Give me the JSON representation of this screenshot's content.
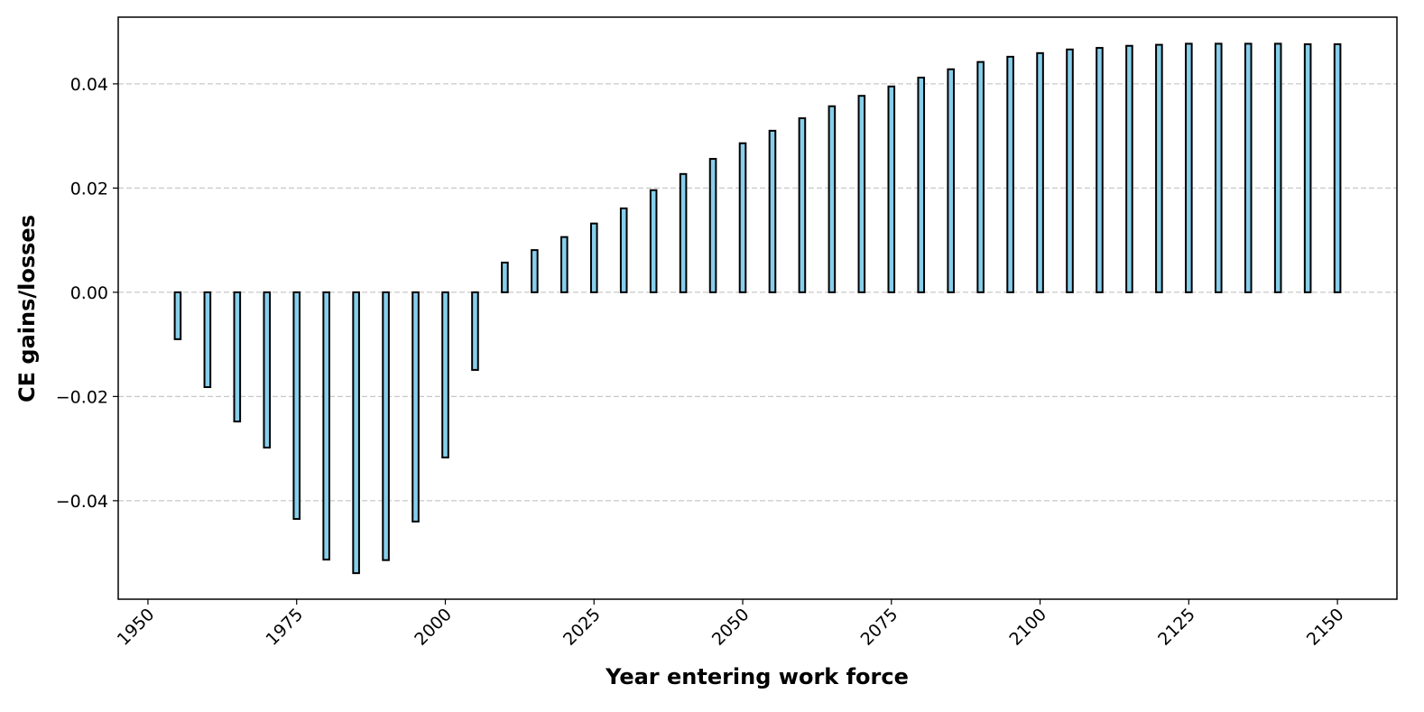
{
  "chart_data": {
    "type": "bar",
    "x_label": "Year entering work force",
    "y_label": "CE gains/losses",
    "x": [
      1955,
      1960,
      1965,
      1970,
      1975,
      1980,
      1985,
      1990,
      1995,
      2000,
      2005,
      2010,
      2015,
      2020,
      2025,
      2030,
      2035,
      2040,
      2045,
      2050,
      2055,
      2060,
      2065,
      2070,
      2075,
      2080,
      2085,
      2090,
      2095,
      2100,
      2105,
      2110,
      2115,
      2120,
      2125,
      2130,
      2135,
      2140,
      2145,
      2150
    ],
    "values": [
      -0.009,
      -0.0182,
      -0.0248,
      -0.0298,
      -0.0435,
      -0.0513,
      -0.0539,
      -0.0514,
      -0.044,
      -0.0317,
      -0.0149,
      0.0057,
      0.0081,
      0.0106,
      0.0132,
      0.0161,
      0.0196,
      0.0227,
      0.0256,
      0.0286,
      0.031,
      0.0334,
      0.0357,
      0.0377,
      0.0395,
      0.0412,
      0.0428,
      0.0442,
      0.0452,
      0.0459,
      0.0466,
      0.0469,
      0.0473,
      0.0475,
      0.0477,
      0.0477,
      0.0477,
      0.0477,
      0.0476,
      0.0476
    ],
    "color": "#87ceeb",
    "edge_color": "#000000",
    "bar_width": 1,
    "xlim": [
      1945,
      2160
    ],
    "xticks": [
      1950,
      1975,
      2000,
      2025,
      2050,
      2075,
      2100,
      2125,
      2150
    ],
    "ylim": [
      -0.0589,
      0.0528
    ],
    "yticks": [
      {
        "value": -0.04,
        "label": "−0.04"
      },
      {
        "value": -0.02,
        "label": "−0.02"
      },
      {
        "value": 0,
        "label": "0.00"
      },
      0.02,
      0.04
    ],
    "grid": "y"
  }
}
